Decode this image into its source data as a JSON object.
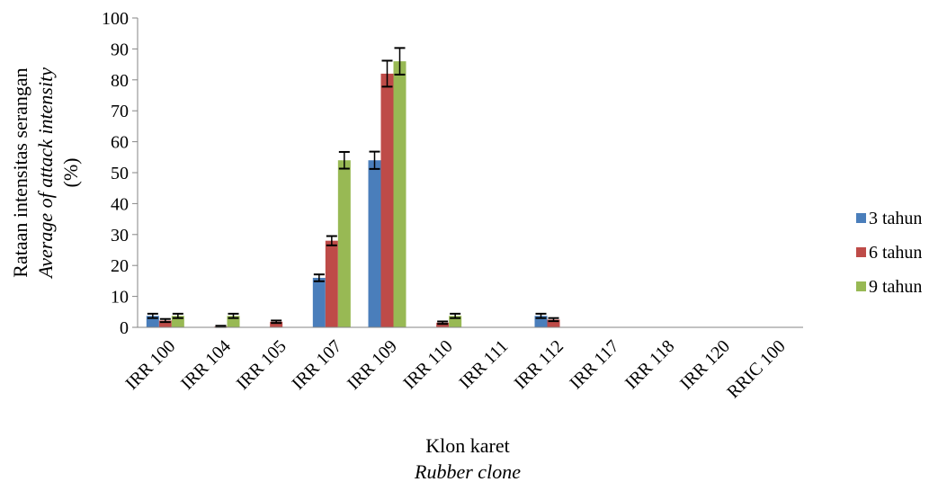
{
  "chart_data": {
    "type": "bar",
    "categories": [
      "IRR 100",
      "IRR 104",
      "IRR 105",
      "IRR 107",
      "IRR 109",
      "IRR 110",
      "IRR 111",
      "IRR 112",
      "IRR 117",
      "IRR 118",
      "IRR 120",
      "RRIC 100"
    ],
    "series": [
      {
        "name": "3 tahun",
        "color": "#4a7ebb",
        "values": [
          3.7,
          0,
          0,
          16,
          54,
          0,
          0,
          3.7,
          0,
          0,
          0,
          0
        ],
        "errors": [
          0.7,
          0,
          0,
          1.1,
          2.8,
          0,
          0,
          0.7,
          0,
          0,
          0,
          0
        ]
      },
      {
        "name": "6 tahun",
        "color": "#be4b48",
        "values": [
          2.2,
          0.3,
          1.8,
          28,
          82,
          1.5,
          0,
          2.5,
          0,
          0,
          0,
          0
        ],
        "errors": [
          0.5,
          0.2,
          0.4,
          1.5,
          4.2,
          0.4,
          0,
          0.5,
          0,
          0,
          0,
          0
        ]
      },
      {
        "name": "9 tahun",
        "color": "#98b954",
        "values": [
          3.7,
          3.7,
          0,
          54,
          86,
          3.7,
          0,
          0,
          0,
          0,
          0,
          0
        ],
        "errors": [
          0.7,
          0.7,
          0,
          2.7,
          4.3,
          0.7,
          0,
          0,
          0,
          0,
          0,
          0
        ]
      }
    ],
    "ylim": [
      0,
      100
    ],
    "yticks": [
      "0",
      "10",
      "20",
      "30",
      "40",
      "50",
      "60",
      "70",
      "80",
      "90",
      "100"
    ],
    "ylabel_lines": [
      "Rataan intensitas serangan",
      "Average of attack intensity",
      "(%)"
    ],
    "xlabel_lines": [
      "Klon karet",
      "Rubber clone"
    ],
    "legend_position": "right",
    "grid": false
  }
}
